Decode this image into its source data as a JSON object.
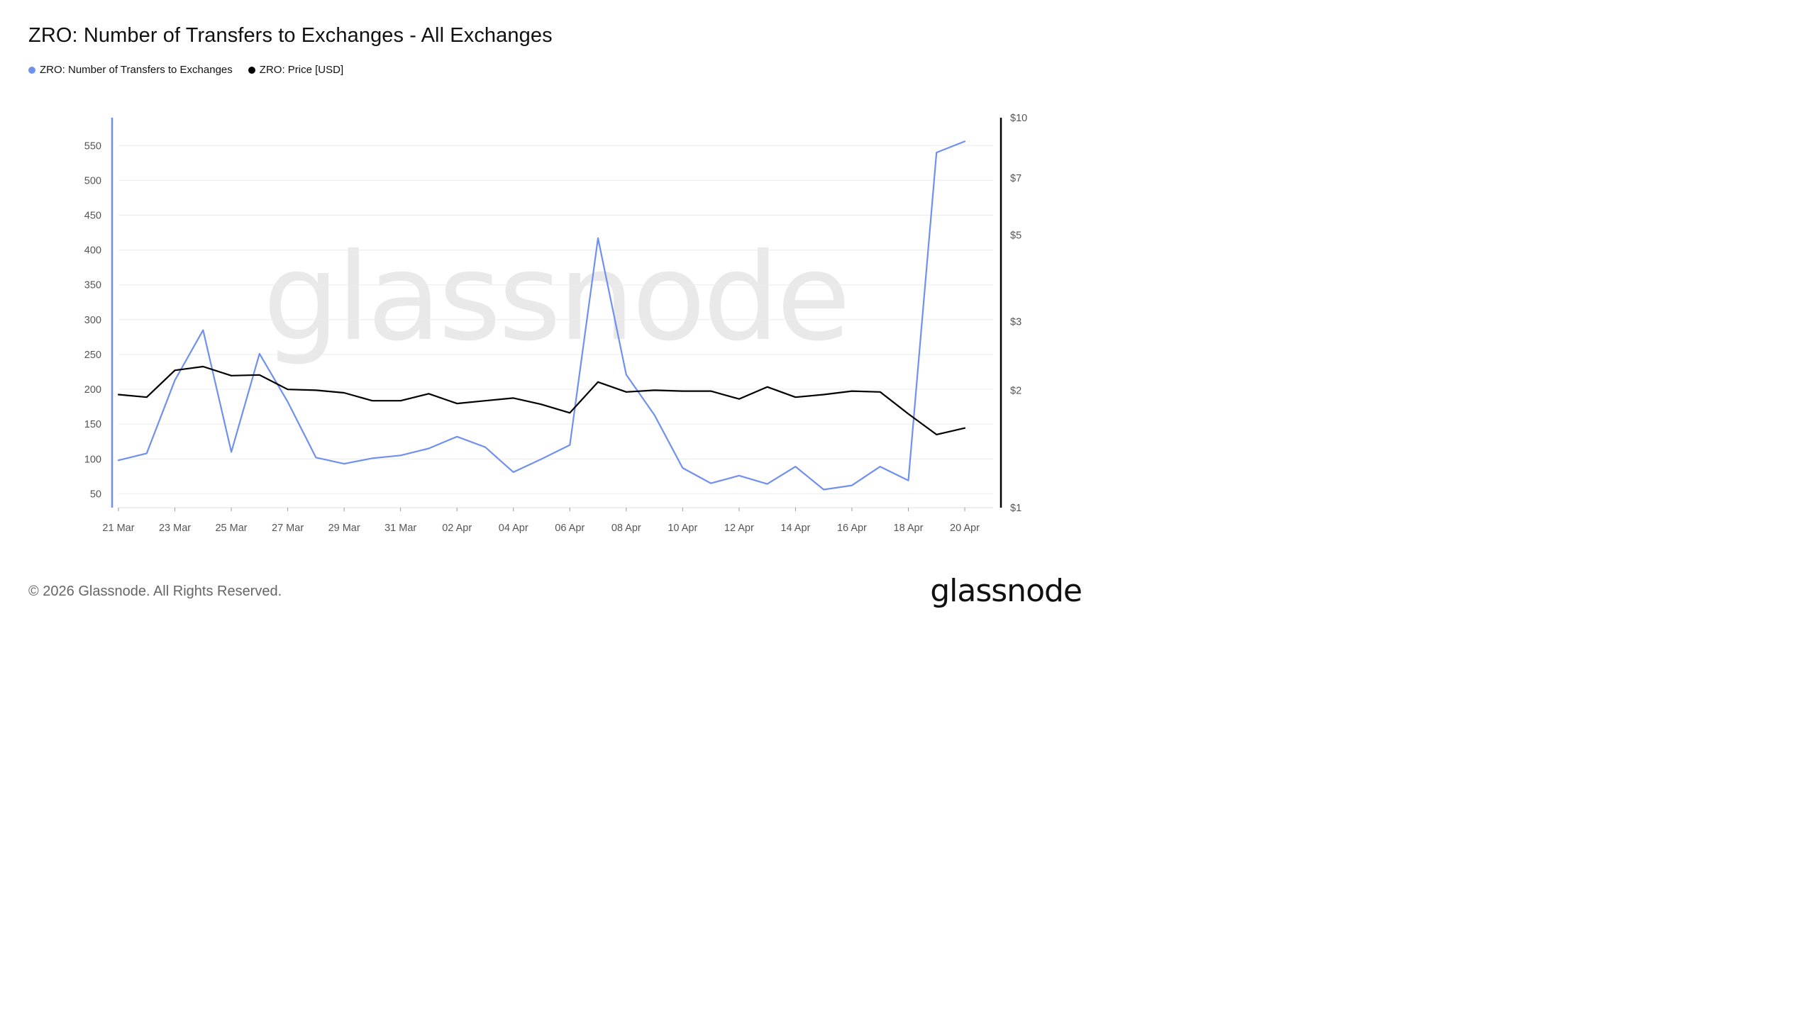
{
  "title": "ZRO: Number of Transfers to Exchanges - All Exchanges",
  "legend": [
    {
      "label": "ZRO: Number of Transfers to Exchanges",
      "color": "#7090f0"
    },
    {
      "label": "ZRO: Price [USD]",
      "color": "#000000"
    }
  ],
  "footer": "© 2026 Glassnode. All Rights Reserved.",
  "logo": "glassnode",
  "watermark": "glassnode",
  "chart_data": {
    "type": "line",
    "title": "ZRO: Number of Transfers to Exchanges - All Exchanges",
    "x": [
      "21 Mar",
      "22 Mar",
      "23 Mar",
      "24 Mar",
      "25 Mar",
      "26 Mar",
      "27 Mar",
      "28 Mar",
      "29 Mar",
      "30 Mar",
      "31 Mar",
      "01 Apr",
      "02 Apr",
      "03 Apr",
      "04 Apr",
      "05 Apr",
      "06 Apr",
      "07 Apr",
      "08 Apr",
      "09 Apr",
      "10 Apr",
      "11 Apr",
      "12 Apr",
      "13 Apr",
      "14 Apr",
      "15 Apr",
      "16 Apr",
      "17 Apr",
      "18 Apr",
      "19 Apr",
      "20 Apr"
    ],
    "x_tick_labels": [
      "21 Mar",
      "23 Mar",
      "25 Mar",
      "27 Mar",
      "29 Mar",
      "31 Mar",
      "02 Apr",
      "04 Apr",
      "06 Apr",
      "08 Apr",
      "10 Apr",
      "12 Apr",
      "14 Apr",
      "16 Apr",
      "18 Apr",
      "20 Apr"
    ],
    "y_left": {
      "ticks": [
        "50",
        "100",
        "150",
        "200",
        "250",
        "300",
        "350",
        "400",
        "450",
        "500",
        "550"
      ],
      "range": [
        30,
        590
      ]
    },
    "y_right": {
      "scale": "log",
      "ticks": [
        "$1",
        "$2",
        "$3",
        "$5",
        "$7",
        "$10"
      ],
      "tick_values": [
        1,
        2,
        3,
        5,
        7,
        10
      ],
      "range": [
        1,
        10
      ]
    },
    "grid": true,
    "legend_position": "top-left",
    "series": [
      {
        "name": "ZRO: Number of Transfers to Exchanges",
        "axis": "left",
        "color": "#7090f0",
        "values": [
          98,
          108,
          213,
          285,
          110,
          251,
          182,
          102,
          93,
          101,
          105,
          115,
          132,
          117,
          81,
          100,
          120,
          417,
          221,
          163,
          87,
          65,
          76,
          64,
          89,
          56,
          62,
          89,
          69,
          540,
          556
        ]
      },
      {
        "name": "ZRO: Price [USD]",
        "axis": "right",
        "scale": "log",
        "color": "#000000",
        "values": [
          1.95,
          1.92,
          2.25,
          2.3,
          2.18,
          2.19,
          2.01,
          2.0,
          1.97,
          1.88,
          1.88,
          1.96,
          1.85,
          1.88,
          1.91,
          1.84,
          1.75,
          2.1,
          1.98,
          2.0,
          1.99,
          1.99,
          1.9,
          2.04,
          1.92,
          1.95,
          1.99,
          1.98,
          1.74,
          1.54,
          1.6
        ]
      }
    ]
  }
}
